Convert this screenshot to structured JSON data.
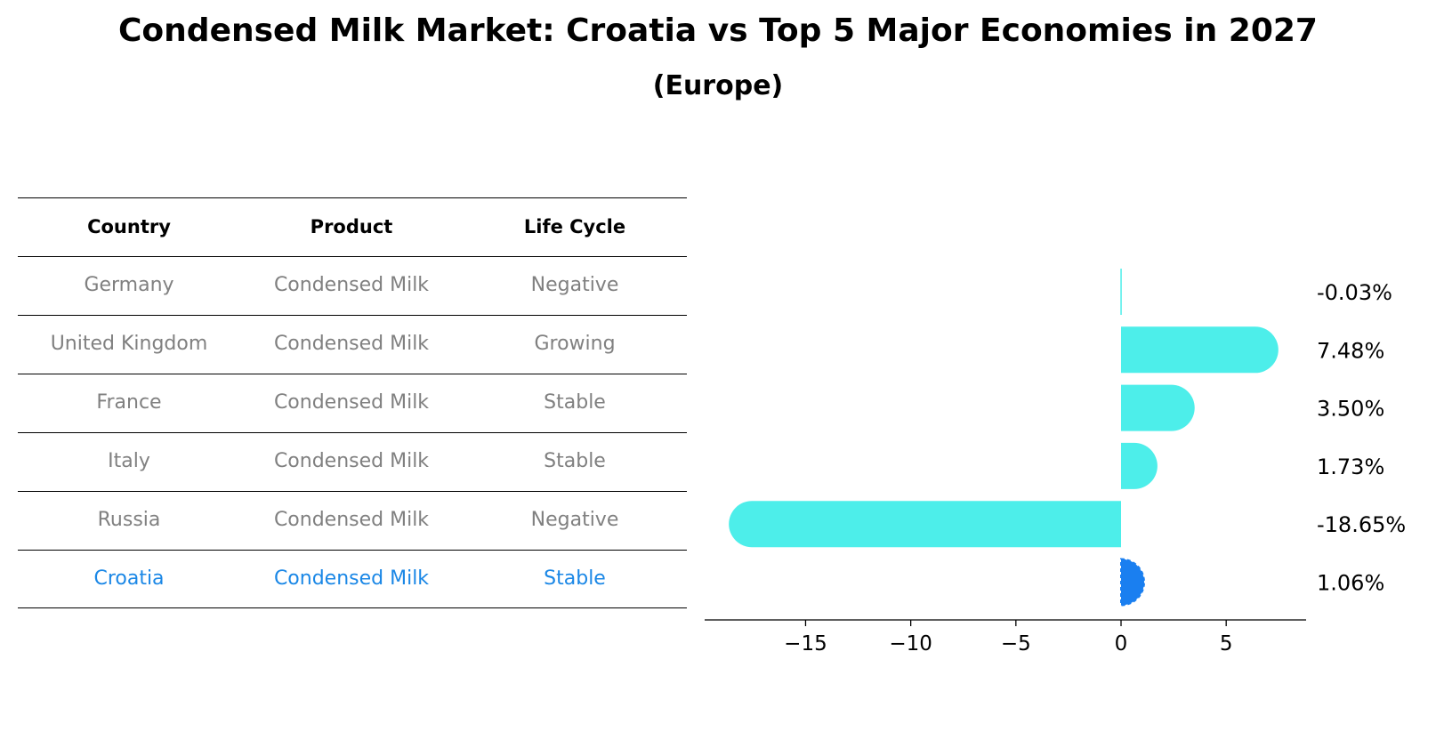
{
  "title": "Condensed Milk Market: Croatia vs Top 5 Major Economies in 2027",
  "subtitle": "(Europe)",
  "table": {
    "headers": [
      "Country",
      "Product",
      "Life Cycle"
    ],
    "rows": [
      [
        "Germany",
        "Condensed Milk",
        "Negative"
      ],
      [
        "United Kingdom",
        "Condensed Milk",
        "Growing"
      ],
      [
        "France",
        "Condensed Milk",
        "Stable"
      ],
      [
        "Italy",
        "Condensed Milk",
        "Stable"
      ],
      [
        "Russia",
        "Condensed Milk",
        "Negative"
      ],
      [
        "Croatia",
        "Condensed Milk",
        "Stable"
      ]
    ]
  },
  "colors": {
    "bar": "#4deeea",
    "highlight": "#1a7ff0",
    "table_text": "#808080",
    "table_highlight_text": "#1a87e6"
  },
  "chart_data": {
    "type": "bar",
    "orientation": "horizontal",
    "categories": [
      "Germany",
      "United Kingdom",
      "France",
      "Italy",
      "Russia",
      "Croatia"
    ],
    "values": [
      -0.03,
      7.48,
      3.5,
      1.73,
      -18.65,
      1.06
    ],
    "value_labels": [
      "-0.03%",
      "7.48%",
      "3.50%",
      "1.73%",
      "-18.65%",
      "1.06%"
    ],
    "highlight_category": "Croatia",
    "xlim": [
      -19.8,
      8.8
    ],
    "xticks": [
      -15,
      -10,
      -5,
      0,
      5
    ],
    "xtick_labels": [
      "−15",
      "−10",
      "−5",
      "0",
      "5"
    ],
    "grid": false
  }
}
